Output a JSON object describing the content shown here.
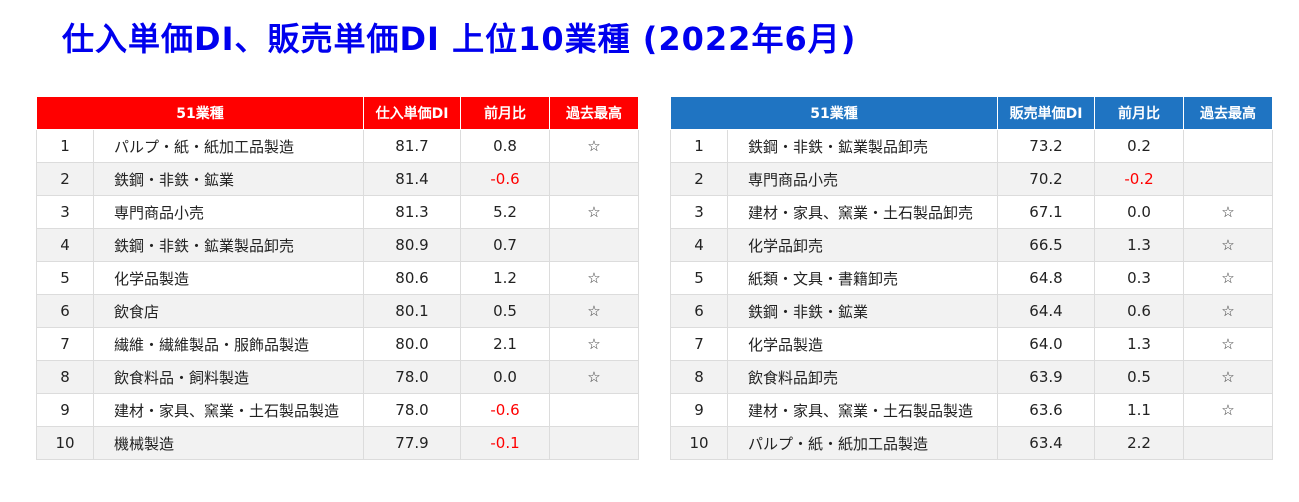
{
  "title": "仕入単価DI、販売単価DI 上位10業種 (2022年6月)",
  "colors": {
    "title": "#0000ee",
    "purchase_header": "#ff0000",
    "sales_header": "#1f74c2",
    "negative": "#ff0000"
  },
  "purchase_table": {
    "headers": [
      "51業種",
      "仕入単価DI",
      "前月比",
      "過去最高"
    ],
    "rows": [
      {
        "rank": "1",
        "industry": "パルプ・紙・紙加工品製造",
        "di": "81.7",
        "change": "0.8",
        "record": "☆"
      },
      {
        "rank": "2",
        "industry": "鉄鋼・非鉄・鉱業",
        "di": "81.4",
        "change": "-0.6",
        "record": ""
      },
      {
        "rank": "3",
        "industry": "専門商品小売",
        "di": "81.3",
        "change": "5.2",
        "record": "☆"
      },
      {
        "rank": "4",
        "industry": "鉄鋼・非鉄・鉱業製品卸売",
        "di": "80.9",
        "change": "0.7",
        "record": ""
      },
      {
        "rank": "5",
        "industry": "化学品製造",
        "di": "80.6",
        "change": "1.2",
        "record": "☆"
      },
      {
        "rank": "6",
        "industry": "飲食店",
        "di": "80.1",
        "change": "0.5",
        "record": "☆"
      },
      {
        "rank": "7",
        "industry": "繊維・繊維製品・服飾品製造",
        "di": "80.0",
        "change": "2.1",
        "record": "☆"
      },
      {
        "rank": "8",
        "industry": "飲食料品・飼料製造",
        "di": "78.0",
        "change": "0.0",
        "record": "☆"
      },
      {
        "rank": "9",
        "industry": "建材・家具、窯業・土石製品製造",
        "di": "78.0",
        "change": "-0.6",
        "record": ""
      },
      {
        "rank": "10",
        "industry": "機械製造",
        "di": "77.9",
        "change": "-0.1",
        "record": ""
      }
    ]
  },
  "sales_table": {
    "headers": [
      "51業種",
      "販売単価DI",
      "前月比",
      "過去最高"
    ],
    "rows": [
      {
        "rank": "1",
        "industry": "鉄鋼・非鉄・鉱業製品卸売",
        "di": "73.2",
        "change": "0.2",
        "record": ""
      },
      {
        "rank": "2",
        "industry": "専門商品小売",
        "di": "70.2",
        "change": "-0.2",
        "record": ""
      },
      {
        "rank": "3",
        "industry": "建材・家具、窯業・土石製品卸売",
        "di": "67.1",
        "change": "0.0",
        "record": "☆"
      },
      {
        "rank": "4",
        "industry": "化学品卸売",
        "di": "66.5",
        "change": "1.3",
        "record": "☆"
      },
      {
        "rank": "5",
        "industry": "紙類・文具・書籍卸売",
        "di": "64.8",
        "change": "0.3",
        "record": "☆"
      },
      {
        "rank": "6",
        "industry": "鉄鋼・非鉄・鉱業",
        "di": "64.4",
        "change": "0.6",
        "record": "☆"
      },
      {
        "rank": "7",
        "industry": "化学品製造",
        "di": "64.0",
        "change": "1.3",
        "record": "☆"
      },
      {
        "rank": "8",
        "industry": "飲食料品卸売",
        "di": "63.9",
        "change": "0.5",
        "record": "☆"
      },
      {
        "rank": "9",
        "industry": "建材・家具、窯業・土石製品製造",
        "di": "63.6",
        "change": "1.1",
        "record": "☆"
      },
      {
        "rank": "10",
        "industry": "パルプ・紙・紙加工品製造",
        "di": "63.4",
        "change": "2.2",
        "record": ""
      }
    ]
  }
}
